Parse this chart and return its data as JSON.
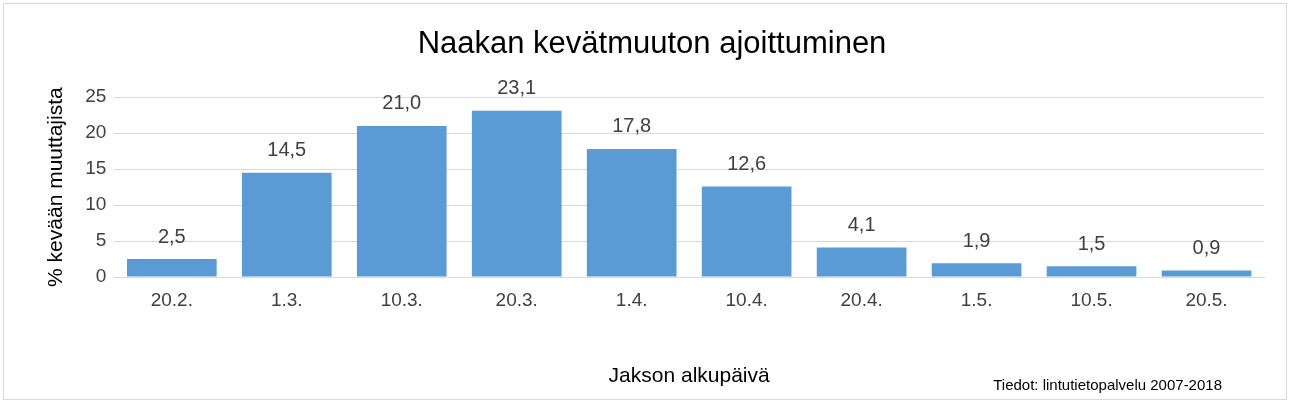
{
  "chart_data": {
    "type": "bar",
    "title": "Naakan kevätmuuton ajoittuminen",
    "xlabel": "Jakson alkupäivä",
    "ylabel": "% kevään muuttajista",
    "categories": [
      "20.2.",
      "1.3.",
      "10.3.",
      "20.3.",
      "1.4.",
      "10.4.",
      "20.4.",
      "1.5.",
      "10.5.",
      "20.5."
    ],
    "values": [
      2.5,
      14.5,
      21.0,
      23.1,
      17.8,
      12.6,
      4.1,
      1.9,
      1.5,
      0.9
    ],
    "value_labels": [
      "2,5",
      "14,5",
      "21,0",
      "23,1",
      "17,8",
      "12,6",
      "4,1",
      "1,9",
      "1,5",
      "0,9"
    ],
    "color": "#5b9bd5",
    "ylim": [
      0,
      25
    ],
    "yticks": [
      0,
      5,
      10,
      15,
      20,
      25
    ],
    "grid": "y",
    "legend": false,
    "annotations": [
      "Tiedot: lintutietopalvelu 2007-2018"
    ]
  }
}
